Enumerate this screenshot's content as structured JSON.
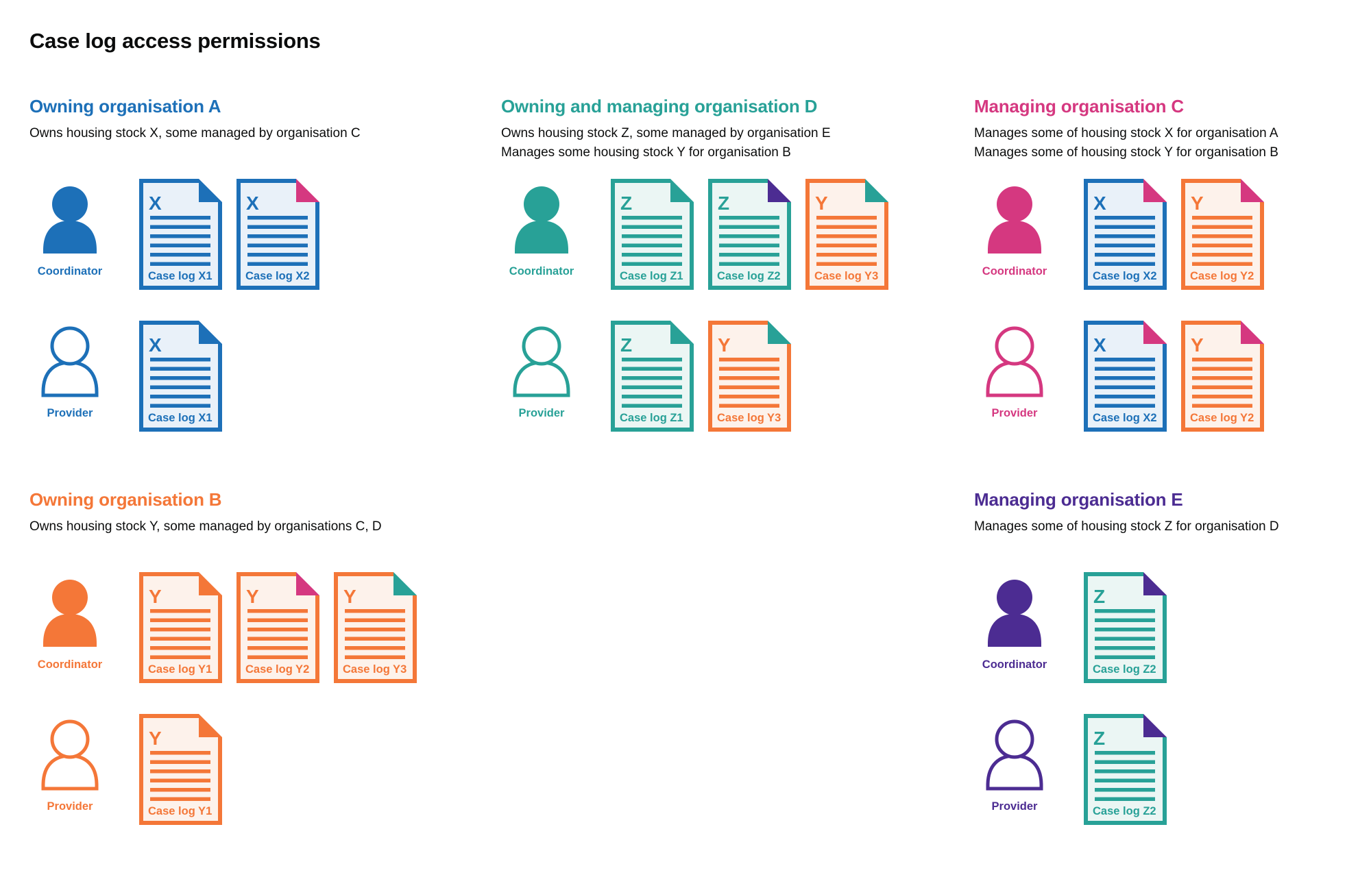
{
  "page": {
    "title": "Case log access permissions"
  },
  "colors": {
    "blue": "#1d70b8",
    "teal": "#28a197",
    "pink": "#d53880",
    "orange": "#f47738",
    "purple": "#4c2c92",
    "text": "#0b0c0c"
  },
  "tints": {
    "blue": "#e9f1f9",
    "teal": "#ebf6f4",
    "orange": "#fdf2eb"
  },
  "sections": [
    {
      "id": "org-a",
      "color": "blue",
      "heading": "Owning organisation A",
      "description": [
        "Owns housing stock X, some managed by organisation C"
      ],
      "rows": [
        {
          "role": "Coordinator",
          "person": "filled",
          "docs": [
            {
              "letter": "X",
              "label": "Case log X1",
              "doc_color": "blue",
              "fold_color": "blue"
            },
            {
              "letter": "X",
              "label": "Case log X2",
              "doc_color": "blue",
              "fold_color": "pink"
            }
          ]
        },
        {
          "role": "Provider",
          "person": "outline",
          "docs": [
            {
              "letter": "X",
              "label": "Case log X1",
              "doc_color": "blue",
              "fold_color": "blue"
            }
          ]
        }
      ]
    },
    {
      "id": "org-d",
      "color": "teal",
      "heading": "Owning and managing organisation D",
      "description": [
        "Owns housing stock Z, some managed by organisation E",
        "Manages some housing stock Y for organisation B"
      ],
      "rows": [
        {
          "role": "Coordinator",
          "person": "filled",
          "docs": [
            {
              "letter": "Z",
              "label": "Case log Z1",
              "doc_color": "teal",
              "fold_color": "teal"
            },
            {
              "letter": "Z",
              "label": "Case log Z2",
              "doc_color": "teal",
              "fold_color": "purple"
            },
            {
              "letter": "Y",
              "label": "Case log Y3",
              "doc_color": "orange",
              "fold_color": "teal"
            }
          ]
        },
        {
          "role": "Provider",
          "person": "outline",
          "docs": [
            {
              "letter": "Z",
              "label": "Case log Z1",
              "doc_color": "teal",
              "fold_color": "teal"
            },
            {
              "letter": "Y",
              "label": "Case log Y3",
              "doc_color": "orange",
              "fold_color": "teal"
            }
          ]
        }
      ]
    },
    {
      "id": "org-c",
      "color": "pink",
      "heading": "Managing organisation C",
      "description": [
        "Manages some of housing stock X for organisation A",
        "Manages some of housing stock Y for organisation B"
      ],
      "rows": [
        {
          "role": "Coordinator",
          "person": "filled",
          "docs": [
            {
              "letter": "X",
              "label": "Case log X2",
              "doc_color": "blue",
              "fold_color": "pink"
            },
            {
              "letter": "Y",
              "label": "Case log Y2",
              "doc_color": "orange",
              "fold_color": "pink"
            }
          ]
        },
        {
          "role": "Provider",
          "person": "outline",
          "docs": [
            {
              "letter": "X",
              "label": "Case log X2",
              "doc_color": "blue",
              "fold_color": "pink"
            },
            {
              "letter": "Y",
              "label": "Case log Y2",
              "doc_color": "orange",
              "fold_color": "pink"
            }
          ]
        }
      ]
    },
    {
      "id": "org-b",
      "color": "orange",
      "heading": "Owning organisation B",
      "description": [
        "Owns housing stock Y, some managed by organisations C, D"
      ],
      "rows": [
        {
          "role": "Coordinator",
          "person": "filled",
          "docs": [
            {
              "letter": "Y",
              "label": "Case log Y1",
              "doc_color": "orange",
              "fold_color": "orange"
            },
            {
              "letter": "Y",
              "label": "Case log Y2",
              "doc_color": "orange",
              "fold_color": "pink"
            },
            {
              "letter": "Y",
              "label": "Case log Y3",
              "doc_color": "orange",
              "fold_color": "teal"
            }
          ]
        },
        {
          "role": "Provider",
          "person": "outline",
          "docs": [
            {
              "letter": "Y",
              "label": "Case log Y1",
              "doc_color": "orange",
              "fold_color": "orange"
            }
          ]
        }
      ]
    },
    {
      "id": "org-e",
      "color": "purple",
      "heading": "Managing organisation E",
      "description": [
        "Manages some of housing stock Z for organisation D"
      ],
      "rows": [
        {
          "role": "Coordinator",
          "person": "filled",
          "docs": [
            {
              "letter": "Z",
              "label": "Case log Z2",
              "doc_color": "teal",
              "fold_color": "purple"
            }
          ]
        },
        {
          "role": "Provider",
          "person": "outline",
          "docs": [
            {
              "letter": "Z",
              "label": "Case log Z2",
              "doc_color": "teal",
              "fold_color": "purple"
            }
          ]
        }
      ]
    }
  ]
}
